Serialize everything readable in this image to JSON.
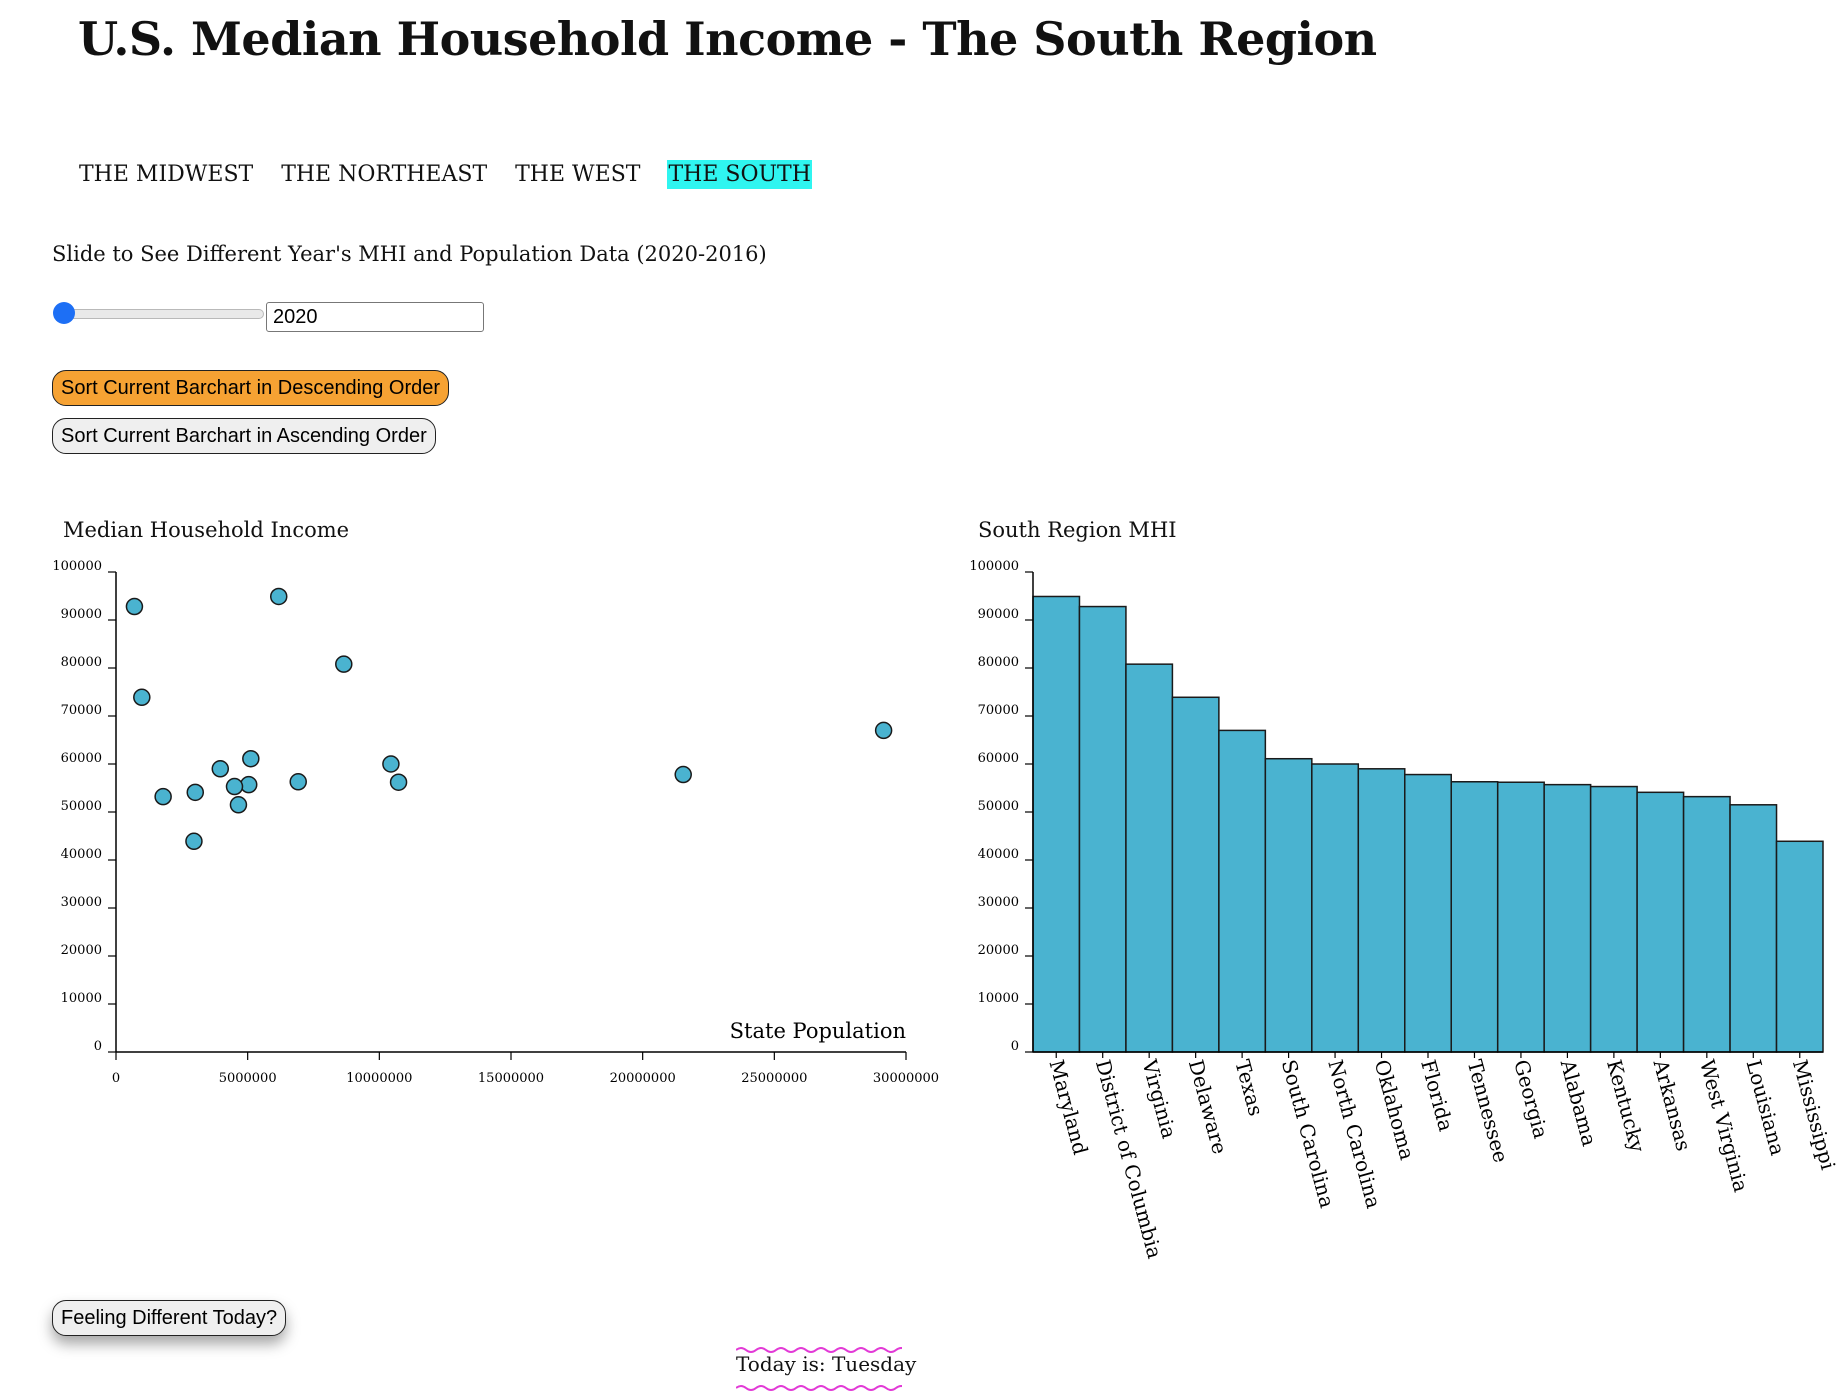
{
  "page_title": "U.S. Median Household Income - The South Region",
  "nav": [
    {
      "label": "THE MIDWEST",
      "active": false
    },
    {
      "label": "THE NORTHEAST",
      "active": false
    },
    {
      "label": "THE WEST",
      "active": false
    },
    {
      "label": "THE SOUTH",
      "active": true
    }
  ],
  "slider": {
    "label": "Slide to See Different Year's MHI and Population Data (2020-2016)",
    "value": "2020",
    "min": 2016,
    "max": 2020
  },
  "buttons": {
    "sort_desc": "Sort Current Barchart in Descending Order",
    "sort_asc": "Sort Current Barchart in Ascending Order",
    "feeling": "Feeling Different Today?"
  },
  "today_text": "Today is: Tuesday",
  "colors": {
    "accent_nav": "#2ff5f0",
    "mark_fill": "#4ab3d0",
    "sort_desc_button": "#f6a233",
    "slider_thumb": "#1d6ff5",
    "wave": "#e23ad6"
  },
  "chart_data": [
    {
      "type": "scatter",
      "title": "Median Household Income",
      "xlabel": "State Population",
      "ylabel": "",
      "xlim": [
        0,
        30000000
      ],
      "ylim": [
        0,
        100000
      ],
      "x_ticks": [
        0,
        5000000,
        10000000,
        15000000,
        20000000,
        25000000,
        30000000
      ],
      "y_ticks": [
        0,
        10000,
        20000,
        30000,
        40000,
        50000,
        60000,
        70000,
        80000,
        90000,
        100000
      ],
      "points": [
        {
          "x": 700000,
          "y": 92800
        },
        {
          "x": 980000,
          "y": 73900
        },
        {
          "x": 6180000,
          "y": 94900
        },
        {
          "x": 8650000,
          "y": 80800
        },
        {
          "x": 29150000,
          "y": 67000
        },
        {
          "x": 21540000,
          "y": 57800
        },
        {
          "x": 10440000,
          "y": 60000
        },
        {
          "x": 10730000,
          "y": 56200
        },
        {
          "x": 5120000,
          "y": 61100
        },
        {
          "x": 3960000,
          "y": 59000
        },
        {
          "x": 6920000,
          "y": 56300
        },
        {
          "x": 5040000,
          "y": 55700
        },
        {
          "x": 4500000,
          "y": 55300
        },
        {
          "x": 3010000,
          "y": 54100
        },
        {
          "x": 1790000,
          "y": 53200
        },
        {
          "x": 4650000,
          "y": 51500
        },
        {
          "x": 2960000,
          "y": 43900
        }
      ]
    },
    {
      "type": "bar",
      "title": "South Region MHI",
      "xlabel": "",
      "ylabel": "",
      "ylim": [
        0,
        100000
      ],
      "y_ticks": [
        0,
        10000,
        20000,
        30000,
        40000,
        50000,
        60000,
        70000,
        80000,
        90000,
        100000
      ],
      "categories": [
        "Maryland",
        "District of Columbia",
        "Virginia",
        "Delaware",
        "Texas",
        "South Carolina",
        "North Carolina",
        "Oklahoma",
        "Florida",
        "Tennessee",
        "Georgia",
        "Alabama",
        "Kentucky",
        "Arkansas",
        "West Virginia",
        "Louisiana",
        "Mississippi"
      ],
      "values": [
        94900,
        92800,
        80800,
        73900,
        67000,
        61100,
        60000,
        59000,
        57800,
        56300,
        56200,
        55700,
        55300,
        54100,
        53200,
        51500,
        43900
      ]
    }
  ]
}
